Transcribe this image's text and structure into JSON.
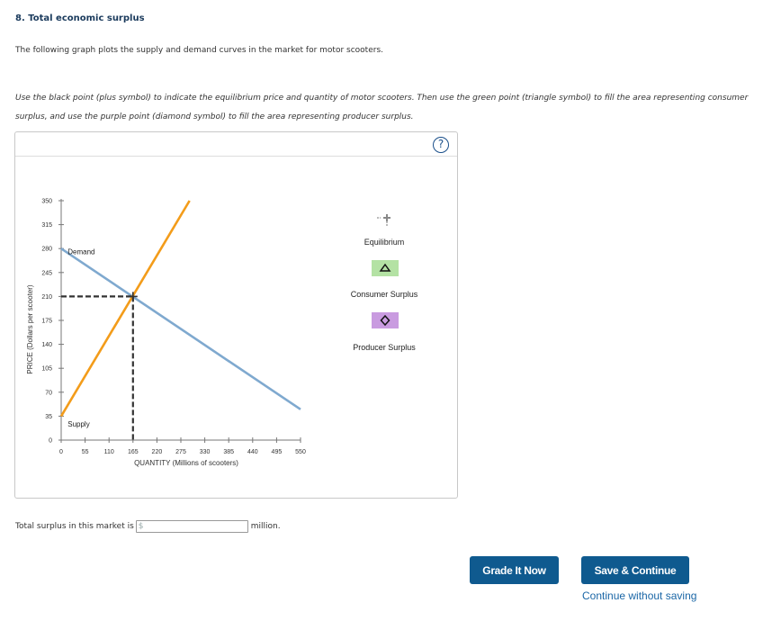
{
  "question": {
    "title": "8. Total economic surplus",
    "intro": "The following graph plots the supply and demand curves in the market for motor scooters.",
    "instruction": "Use the black point (plus symbol) to indicate the equilibrium price and quantity of motor scooters. Then use the green point (triangle symbol) to fill the area representing consumer surplus, and use the purple point (diamond symbol) to fill the area representing producer surplus."
  },
  "help": {
    "label": "?"
  },
  "chart_data": {
    "type": "line",
    "xlabel": "QUANTITY (Millions of scooters)",
    "ylabel": "PRICE (Dollars per scooter)",
    "xlim": [
      0,
      550
    ],
    "ylim": [
      0,
      350
    ],
    "x_ticks": [
      0,
      55,
      110,
      165,
      220,
      275,
      330,
      385,
      440,
      495,
      550
    ],
    "y_ticks": [
      0,
      35,
      70,
      105,
      140,
      175,
      210,
      245,
      280,
      315,
      350
    ],
    "series": [
      {
        "name": "Demand",
        "color": "#7fa9cf",
        "points": [
          [
            0,
            280
          ],
          [
            550,
            45
          ]
        ]
      },
      {
        "name": "Supply",
        "color": "#f39c1a",
        "points": [
          [
            0,
            35
          ],
          [
            295,
            350
          ]
        ]
      }
    ],
    "equilibrium": {
      "x": 165,
      "y": 210,
      "color": "#333333"
    }
  },
  "legend": {
    "equilibrium": {
      "label": "Equilibrium",
      "icon": "plus-icon"
    },
    "consumer_surplus": {
      "label": "Consumer Surplus",
      "icon": "triangle-icon",
      "color": "#b4e2a4"
    },
    "producer_surplus": {
      "label": "Producer Surplus",
      "icon": "diamond-icon",
      "color": "#c99be0"
    }
  },
  "answer": {
    "prefix": "Total surplus in this market is",
    "placeholder": "$",
    "suffix": "million."
  },
  "buttons": {
    "grade": "Grade It Now",
    "save": "Save & Continue",
    "skip": "Continue without saving"
  }
}
